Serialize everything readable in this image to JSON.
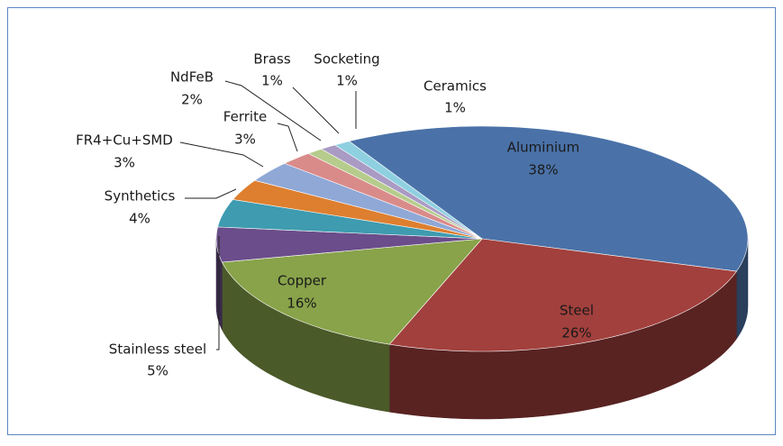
{
  "chart_data": {
    "type": "pie",
    "categories": [
      "Aluminium",
      "Steel",
      "Copper",
      "Stainless steel",
      "Synthetics",
      "FR4+Cu+SMD",
      "Ferrite",
      "NdFeB",
      "Brass",
      "Socketing",
      "Ceramics"
    ],
    "values": [
      38,
      26,
      16,
      5,
      4,
      3,
      3,
      2,
      1,
      1,
      1
    ],
    "value_labels": [
      "38%",
      "26%",
      "16%",
      "5%",
      "4%",
      "3%",
      "3%",
      "2%",
      "1%",
      "1%",
      "1%"
    ],
    "colors": [
      "#4a72a8",
      "#a2403d",
      "#88a34a",
      "#6a4d8a",
      "#3e9bb0",
      "#dd7f2f",
      "#8fa8d6",
      "#d98b8a",
      "#b6cc8c",
      "#a99bc4",
      "#8fd0e0"
    ]
  }
}
